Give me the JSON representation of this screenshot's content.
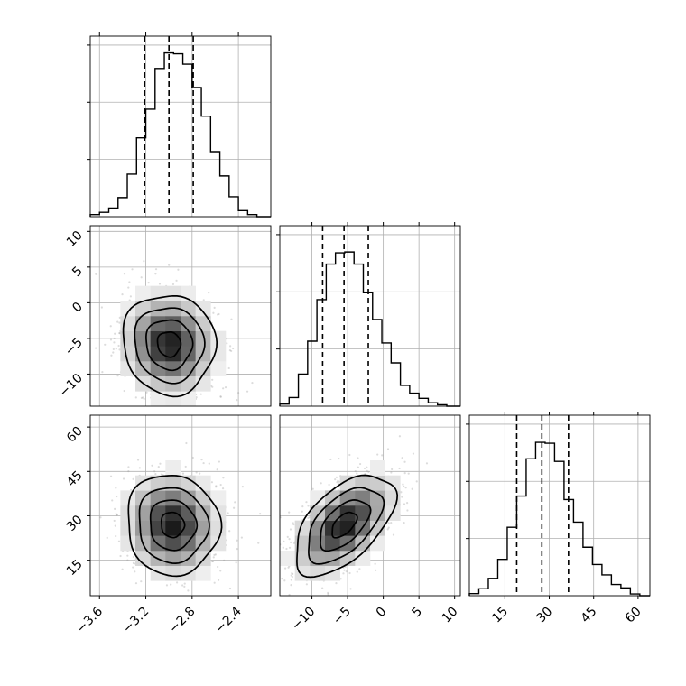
{
  "chart_data": {
    "type": "corner",
    "parameters": [
      {
        "name": "",
        "range": [
          -3.68,
          -2.12
        ],
        "ticks": [
          -3.6,
          -3.2,
          -2.8,
          -2.4
        ],
        "tick_labels": [
          "−3.6",
          "−3.2",
          "−2.8",
          "−2.4"
        ],
        "quantiles": [
          -3.21,
          -3.0,
          -2.79
        ]
      },
      {
        "name": "",
        "range": [
          -14.5,
          10.8
        ],
        "ticks": [
          -10,
          -5,
          0,
          5,
          10
        ],
        "tick_labels": [
          "−10",
          "−5",
          "0",
          "5",
          "10"
        ],
        "quantiles": [
          -8.5,
          -5.5,
          -2.1
        ]
      },
      {
        "name": "",
        "range": [
          3,
          64
        ],
        "ticks": [
          15,
          30,
          45,
          60
        ],
        "tick_labels": [
          "15",
          "30",
          "45",
          "60"
        ],
        "quantiles": [
          19,
          27.5,
          36.5
        ]
      }
    ],
    "histograms": [
      {
        "parameter": 0,
        "bin_edges": [
          -3.68,
          -3.6,
          -3.52,
          -3.44,
          -3.36,
          -3.28,
          -3.2,
          -3.12,
          -3.04,
          -2.96,
          -2.88,
          -2.8,
          -2.72,
          -2.64,
          -2.56,
          -2.48,
          -2.4,
          -2.32,
          -2.24,
          -2.12
        ],
        "counts": [
          0.012,
          0.025,
          0.05,
          0.11,
          0.245,
          0.455,
          0.62,
          0.855,
          0.945,
          0.94,
          0.88,
          0.745,
          0.58,
          0.375,
          0.235,
          0.115,
          0.035,
          0.012,
          0
        ]
      },
      {
        "parameter": 1,
        "bin_edges": [
          -14.5,
          -13.2,
          -11.9,
          -10.6,
          -9.3,
          -8.0,
          -6.7,
          -5.4,
          -4.1,
          -2.8,
          -1.5,
          -0.2,
          1.1,
          2.4,
          3.7,
          5.0,
          6.3,
          7.6,
          8.9,
          10.8
        ],
        "counts": [
          0.012,
          0.05,
          0.185,
          0.375,
          0.615,
          0.82,
          0.885,
          0.89,
          0.82,
          0.655,
          0.5,
          0.365,
          0.25,
          0.12,
          0.075,
          0.045,
          0.02,
          0.008,
          0
        ]
      },
      {
        "parameter": 2,
        "bin_edges": [
          3,
          6.2,
          9.4,
          12.6,
          15.8,
          19,
          22.2,
          25.4,
          28.6,
          31.8,
          35,
          38.2,
          41.4,
          44.6,
          47.8,
          51,
          54.2,
          57.4,
          60.6,
          64
        ],
        "counts": [
          0.012,
          0.04,
          0.1,
          0.21,
          0.395,
          0.575,
          0.79,
          0.885,
          0.88,
          0.775,
          0.555,
          0.425,
          0.28,
          0.18,
          0.12,
          0.065,
          0.045,
          0.01,
          0
        ]
      }
    ],
    "pairs": [
      {
        "x": 0,
        "y": 1,
        "center": [
          -3.0,
          -5.8
        ],
        "sigma": [
          0.2,
          3.5
        ],
        "rho": -0.05
      },
      {
        "x": 0,
        "y": 2,
        "center": [
          -2.97,
          27
        ],
        "sigma": [
          0.2,
          8.5
        ],
        "rho": -0.05
      },
      {
        "x": 1,
        "y": 2,
        "center": [
          -5.5,
          27
        ],
        "sigma": [
          3.5,
          8.5
        ],
        "rho": 0.55
      }
    ],
    "grid": true,
    "contour_levels_sigma": [
      0.5,
      1.0,
      1.5,
      2.0
    ]
  }
}
